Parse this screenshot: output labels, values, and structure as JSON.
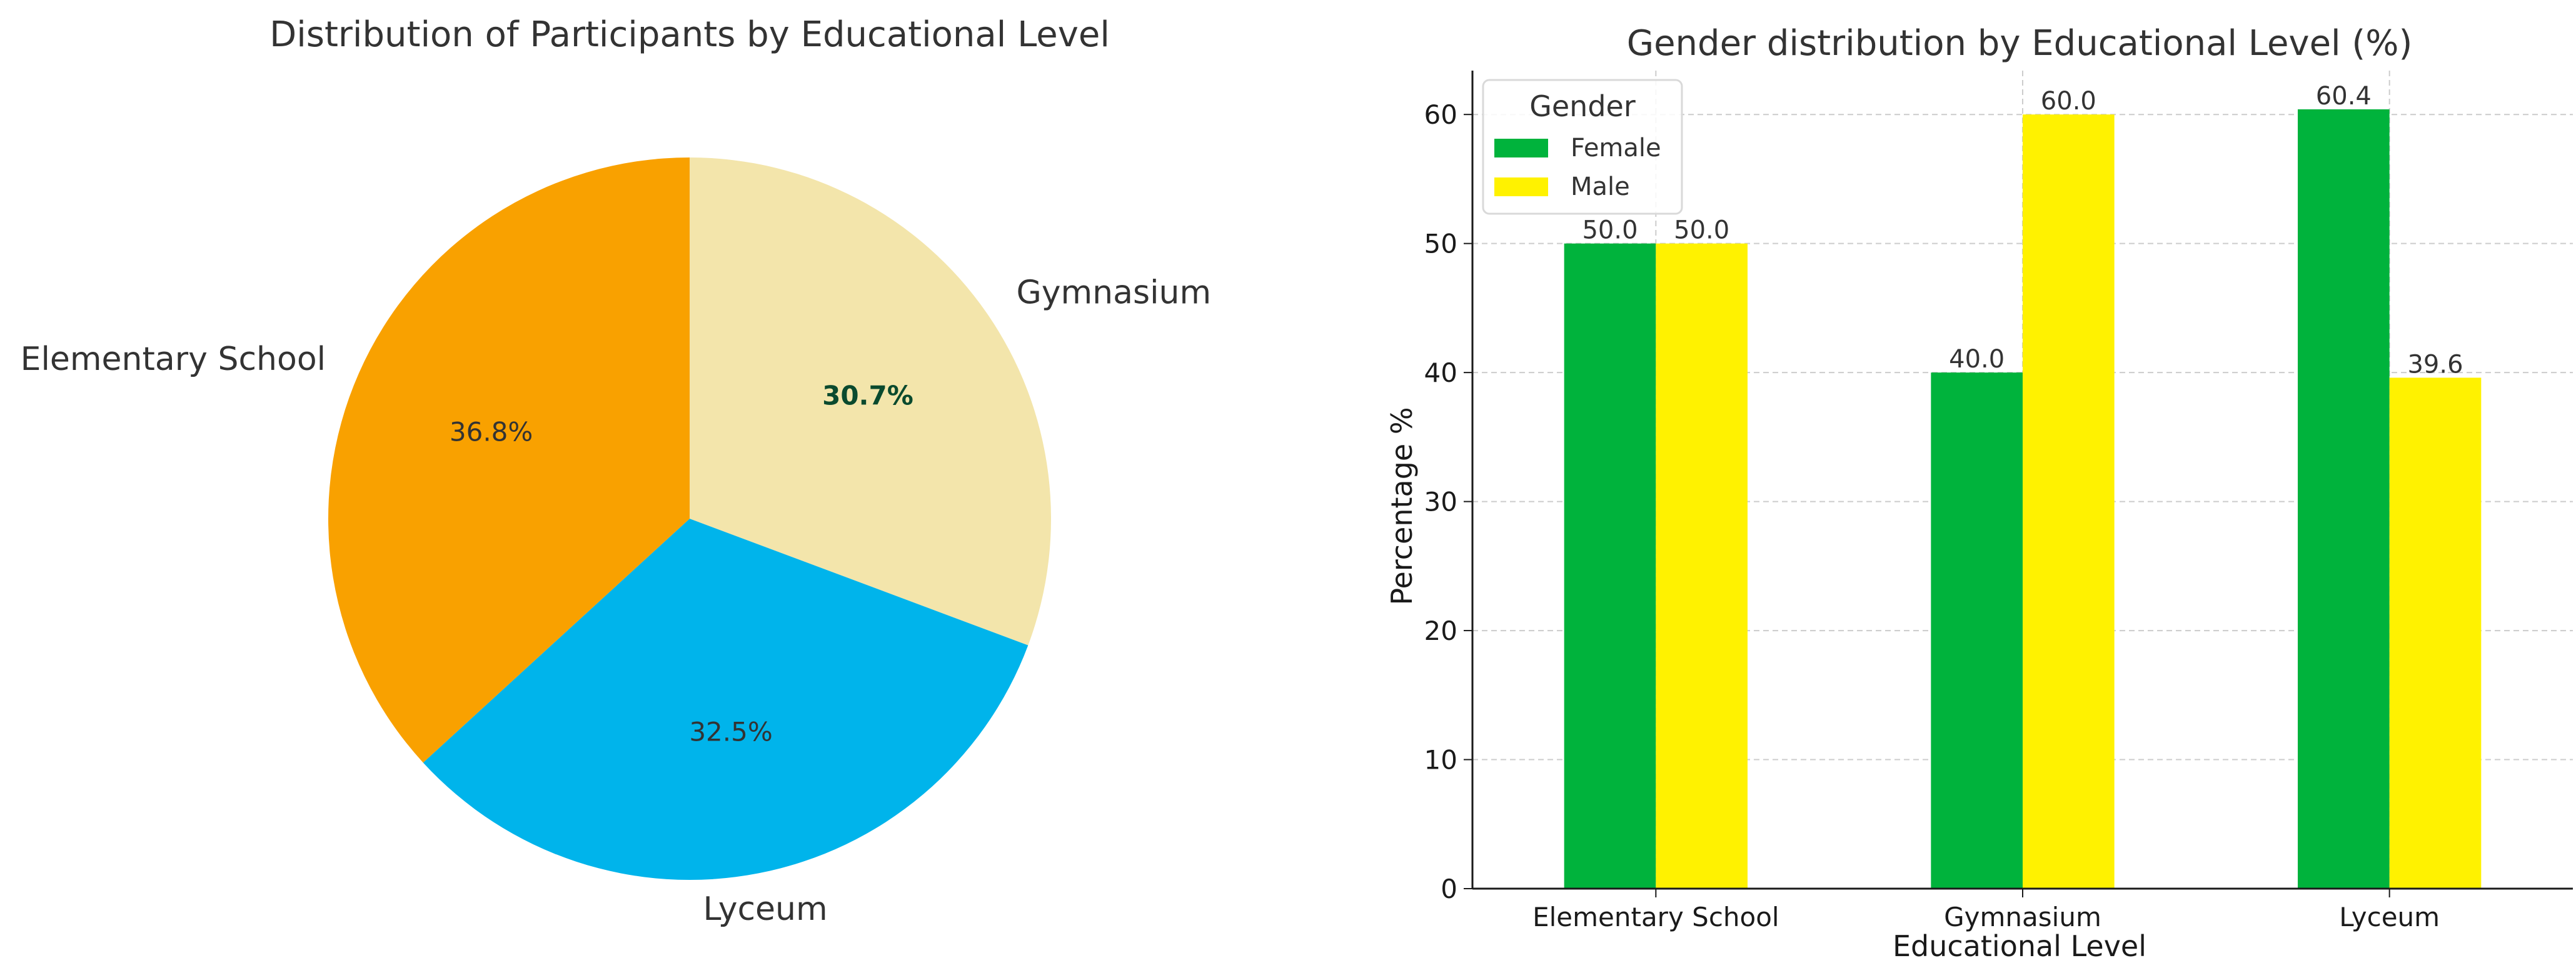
{
  "chart_data": [
    {
      "type": "pie",
      "title": "Distribution of Participants by Educational Level",
      "labels": [
        "Gymnasium",
        "Lyceum",
        "Elementary School"
      ],
      "values": [
        30.7,
        32.5,
        36.8
      ],
      "value_labels": [
        "30.7%",
        "32.5%",
        "36.8%"
      ],
      "colors": [
        "#F3E5AB",
        "#00B4EB",
        "#F9A100"
      ],
      "start": "top, clockwise"
    },
    {
      "type": "bar",
      "title": "Gender distribution by Educational Level (%)",
      "xlabel": "Educational Level",
      "ylabel": "Percentage %",
      "categories": [
        "Elementary School",
        "Gymnasium",
        "Lyceum"
      ],
      "series": [
        {
          "name": "Female",
          "values": [
            50.0,
            40.0,
            60.4
          ],
          "labels": [
            "50.0",
            "40.0",
            "60.4"
          ],
          "color": "#00B33C"
        },
        {
          "name": "Male",
          "values": [
            50.0,
            60.0,
            39.6
          ],
          "labels": [
            "50.0",
            "60.0",
            "39.6"
          ],
          "color": "#FFF200"
        }
      ],
      "ylim": [
        0,
        63.4
      ],
      "yticks": [
        0,
        10,
        20,
        30,
        40,
        50,
        60
      ],
      "ytick_labels": [
        "0",
        "10",
        "20",
        "30",
        "40",
        "50",
        "60"
      ],
      "grid": true,
      "legend": {
        "title": "Gender",
        "placement": "top-left"
      }
    }
  ]
}
